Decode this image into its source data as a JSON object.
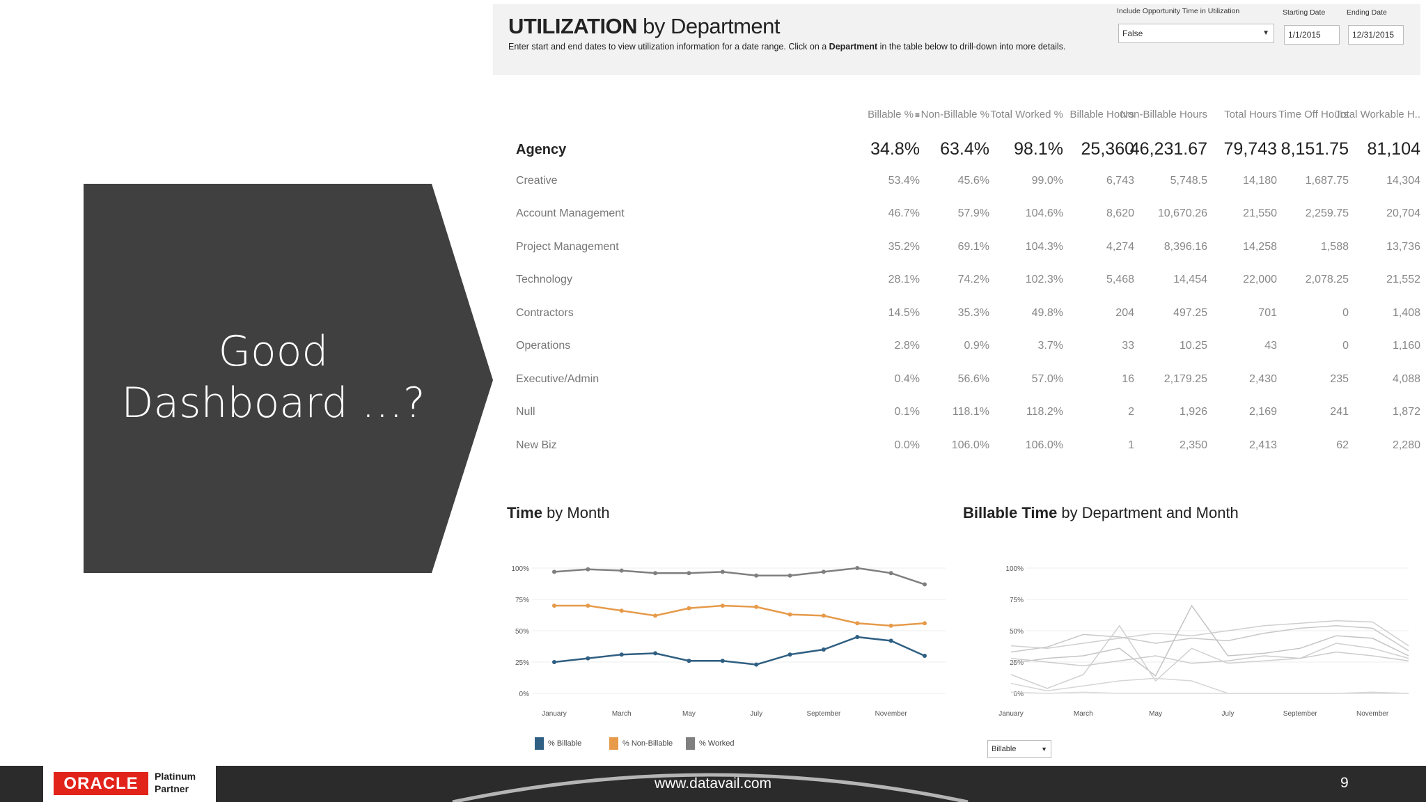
{
  "slide": {
    "heading_line1": "Good",
    "heading_line2": "Dashboard …?",
    "arrow_color": "#404040"
  },
  "dashboard": {
    "title_bold": "UTILIZATION",
    "title_rest": " by Department",
    "subtitle_pre": "Enter start and end dates to view utilization information for a date range. Click on a ",
    "subtitle_bold": "Department",
    "subtitle_post": " in the table below to drill-down into more details.",
    "filters": {
      "opportunity_label": "Include Opportunity Time in Utilization",
      "opportunity_value": "False",
      "start_label": "Starting Date",
      "start_value": "1/1/2015",
      "end_label": "Ending Date",
      "end_value": "12/31/2015"
    }
  },
  "table": {
    "columns": [
      "Billable %",
      "Non-Billable %",
      "Total Worked %",
      "Billable Hours",
      "Non-Billable Hours",
      "Total Hours",
      "Time Off Hours",
      "Total Workable H.."
    ],
    "rows": [
      {
        "name": "Agency",
        "values": [
          "34.8%",
          "63.4%",
          "98.1%",
          "25,360",
          "46,231.67",
          "79,743",
          "8,151.75",
          "81,104"
        ]
      },
      {
        "name": "Creative",
        "values": [
          "53.4%",
          "45.6%",
          "99.0%",
          "6,743",
          "5,748.5",
          "14,180",
          "1,687.75",
          "14,304"
        ]
      },
      {
        "name": "Account Management",
        "values": [
          "46.7%",
          "57.9%",
          "104.6%",
          "8,620",
          "10,670.26",
          "21,550",
          "2,259.75",
          "20,704"
        ]
      },
      {
        "name": "Project Management",
        "values": [
          "35.2%",
          "69.1%",
          "104.3%",
          "4,274",
          "8,396.16",
          "14,258",
          "1,588",
          "13,736"
        ]
      },
      {
        "name": "Technology",
        "values": [
          "28.1%",
          "74.2%",
          "102.3%",
          "5,468",
          "14,454",
          "22,000",
          "2,078.25",
          "21,552"
        ]
      },
      {
        "name": "Contractors",
        "values": [
          "14.5%",
          "35.3%",
          "49.8%",
          "204",
          "497.25",
          "701",
          "0",
          "1,408"
        ]
      },
      {
        "name": "Operations",
        "values": [
          "2.8%",
          "0.9%",
          "3.7%",
          "33",
          "10.25",
          "43",
          "0",
          "1,160"
        ]
      },
      {
        "name": "Executive/Admin",
        "values": [
          "0.4%",
          "56.6%",
          "57.0%",
          "16",
          "2,179.25",
          "2,430",
          "235",
          "4,088"
        ]
      },
      {
        "name": "Null",
        "values": [
          "0.1%",
          "118.1%",
          "118.2%",
          "2",
          "1,926",
          "2,169",
          "241",
          "1,872"
        ]
      },
      {
        "name": "New Biz",
        "values": [
          "0.0%",
          "106.0%",
          "106.0%",
          "1",
          "2,350",
          "2,413",
          "62",
          "2,280"
        ]
      }
    ]
  },
  "chart_data": [
    {
      "type": "line",
      "title_bold": "Time",
      "title_rest": " by Month",
      "y_ticks": [
        "100%",
        "75%",
        "50%",
        "25%",
        "0%"
      ],
      "x_tick_labels": [
        "January",
        "March",
        "May",
        "July",
        "September",
        "November"
      ],
      "x": [
        "January",
        "February",
        "March",
        "April",
        "May",
        "June",
        "July",
        "August",
        "September",
        "October",
        "November",
        "December"
      ],
      "ylim": [
        0,
        100
      ],
      "series": [
        {
          "name": "% Billable",
          "color": "#2f5f82",
          "values": [
            25,
            28,
            31,
            32,
            26,
            26,
            23,
            31,
            35,
            45,
            42,
            30
          ]
        },
        {
          "name": "% Non-Billable",
          "color": "#e69a4a",
          "values": [
            70,
            70,
            66,
            62,
            68,
            70,
            69,
            63,
            62,
            56,
            54,
            56
          ]
        },
        {
          "name": "% Worked",
          "color": "#7f7f7f",
          "values": [
            97,
            99,
            98,
            96,
            96,
            97,
            94,
            94,
            97,
            100,
            96,
            87
          ]
        }
      ]
    },
    {
      "type": "line",
      "title_bold": "Billable Time",
      "title_rest": " by Department and Month",
      "y_ticks": [
        "100%",
        "75%",
        "50%",
        "25%",
        "0%"
      ],
      "x_tick_labels": [
        "January",
        "March",
        "May",
        "July",
        "September",
        "November"
      ],
      "x": [
        "January",
        "February",
        "March",
        "April",
        "May",
        "June",
        "July",
        "August",
        "September",
        "October",
        "November",
        "December"
      ],
      "ylim": [
        0,
        100
      ],
      "selector_value": "Billable",
      "series": [
        {
          "color": "#cfcfcf",
          "values": [
            38,
            36,
            40,
            44,
            48,
            46,
            50,
            54,
            56,
            58,
            57,
            38
          ]
        },
        {
          "color": "#c8c8c8",
          "values": [
            33,
            37,
            47,
            45,
            40,
            44,
            42,
            48,
            52,
            54,
            52,
            34
          ]
        },
        {
          "color": "#c4c4c4",
          "values": [
            24,
            28,
            30,
            36,
            14,
            70,
            30,
            32,
            36,
            46,
            44,
            30
          ]
        },
        {
          "color": "#d0d0d0",
          "values": [
            15,
            4,
            15,
            54,
            10,
            36,
            24,
            26,
            28,
            40,
            36,
            28
          ]
        },
        {
          "color": "#cccccc",
          "values": [
            28,
            25,
            22,
            26,
            30,
            24,
            26,
            30,
            28,
            33,
            30,
            26
          ]
        },
        {
          "color": "#d6d6d6",
          "values": [
            8,
            2,
            6,
            10,
            12,
            10,
            0,
            0,
            0,
            0,
            1,
            0
          ]
        },
        {
          "color": "#dadada",
          "values": [
            1,
            0,
            1,
            0,
            0,
            0,
            0,
            0,
            0,
            0,
            0,
            0
          ]
        }
      ]
    }
  ],
  "footer": {
    "oracle_wordmark": "ORACLE",
    "partner_line1": "Platinum",
    "partner_line2": "Partner",
    "url": "www.datavail.com",
    "page_number": "9"
  }
}
